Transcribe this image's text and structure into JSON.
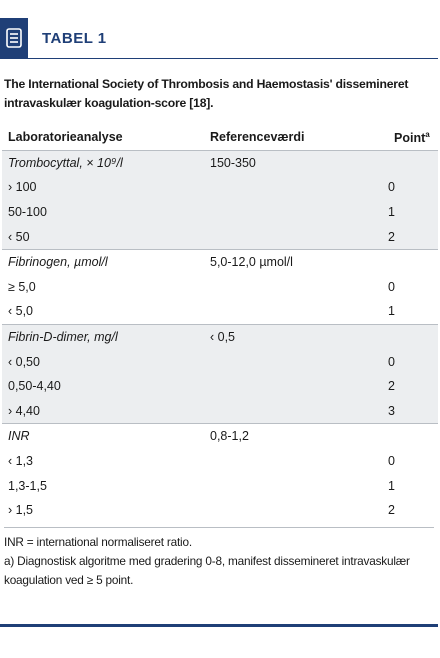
{
  "header": {
    "label": "TABEL 1"
  },
  "caption": "The International Society of Thrombosis and Haemostasis' dissemineret intravaskulær koagulation-score [18].",
  "table": {
    "columns": [
      "Laboratorieanalyse",
      "Referenceværdi",
      "Point"
    ],
    "column_note": "a",
    "groups": [
      {
        "name": "Trombocyttal, × 10⁹/l",
        "reference": "150-350",
        "rows": [
          [
            "› 100",
            "0"
          ],
          [
            "50-100",
            "1"
          ],
          [
            "‹ 50",
            "2"
          ]
        ]
      },
      {
        "name": "Fibrinogen, µmol/l",
        "reference": "5,0-12,0 µmol/l",
        "rows": [
          [
            "≥ 5,0",
            "0"
          ],
          [
            "‹ 5,0",
            "1"
          ]
        ]
      },
      {
        "name": "Fibrin-D-dimer, mg/l",
        "reference": "‹ 0,5",
        "rows": [
          [
            "‹ 0,50",
            "0"
          ],
          [
            "0,50-4,40",
            "2"
          ],
          [
            "› 4,40",
            "3"
          ]
        ]
      },
      {
        "name": "INR",
        "reference": "0,8-1,2",
        "rows": [
          [
            "‹ 1,3",
            "0"
          ],
          [
            "1,3-1,5",
            "1"
          ],
          [
            "› 1,5",
            "2"
          ]
        ]
      }
    ]
  },
  "notes": [
    "INR = international normaliseret ratio.",
    "a) Diagnostisk algoritme med gradering 0-8, manifest dissemineret intravaskulær koagulation ved ≥ 5 point."
  ]
}
